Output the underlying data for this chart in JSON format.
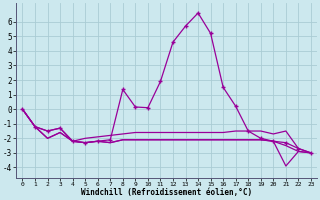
{
  "xlabel": "Windchill (Refroidissement éolien,°C)",
  "x_values": [
    0,
    1,
    2,
    3,
    4,
    5,
    6,
    7,
    8,
    9,
    10,
    11,
    12,
    13,
    14,
    15,
    16,
    17,
    18,
    19,
    20,
    21,
    22,
    23
  ],
  "line1": [
    0.0,
    -1.2,
    -1.5,
    -1.3,
    -2.2,
    -2.3,
    -2.2,
    -2.1,
    1.35,
    0.15,
    0.1,
    1.9,
    4.6,
    5.7,
    6.6,
    5.2,
    1.5,
    0.2,
    -1.5,
    -2.0,
    -2.2,
    -2.3,
    -2.7,
    -3.0
  ],
  "line2": [
    0.0,
    -1.2,
    -1.5,
    -1.3,
    -2.2,
    -2.0,
    -1.9,
    -1.8,
    -1.7,
    -1.6,
    -1.6,
    -1.6,
    -1.6,
    -1.6,
    -1.6,
    -1.6,
    -1.6,
    -1.5,
    -1.5,
    -1.5,
    -1.7,
    -1.5,
    -2.7,
    -3.0
  ],
  "line3": [
    0.0,
    -1.2,
    -2.0,
    -1.6,
    -2.2,
    -2.3,
    -2.2,
    -2.3,
    -2.1,
    -2.1,
    -2.1,
    -2.1,
    -2.1,
    -2.1,
    -2.1,
    -2.1,
    -2.1,
    -2.1,
    -2.1,
    -2.1,
    -2.2,
    -2.5,
    -2.9,
    -3.0
  ],
  "line4": [
    0.0,
    -1.2,
    -2.0,
    -1.6,
    -2.2,
    -2.3,
    -2.2,
    -2.3,
    -2.1,
    -2.1,
    -2.1,
    -2.1,
    -2.1,
    -2.1,
    -2.1,
    -2.1,
    -2.1,
    -2.1,
    -2.1,
    -2.1,
    -2.2,
    -3.9,
    -2.9,
    -3.0
  ],
  "line_color": "#990099",
  "bg_color": "#cce8ee",
  "grid_color": "#aaccd4",
  "ylim": [
    -4.7,
    7.3
  ],
  "yticks": [
    -4,
    -3,
    -2,
    -1,
    0,
    1,
    2,
    3,
    4,
    5,
    6
  ],
  "xticks": [
    0,
    1,
    2,
    3,
    4,
    5,
    6,
    7,
    8,
    9,
    10,
    11,
    12,
    13,
    14,
    15,
    16,
    17,
    18,
    19,
    20,
    21,
    22,
    23
  ]
}
